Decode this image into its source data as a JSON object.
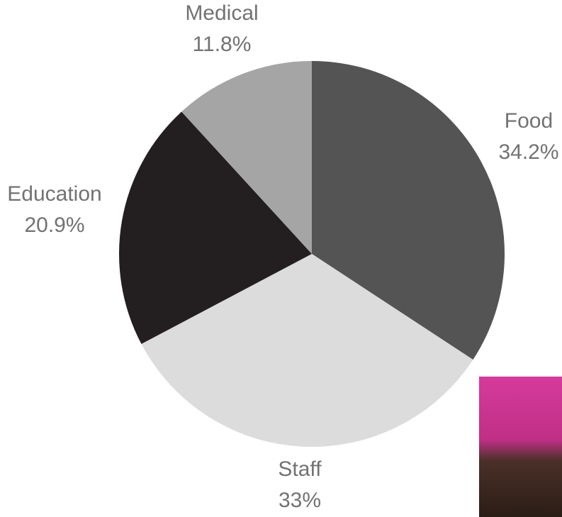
{
  "chart_data": {
    "type": "pie",
    "categories": [
      "Food",
      "Staff",
      "Education",
      "Medical"
    ],
    "values": [
      34.2,
      33,
      20.9,
      11.8
    ],
    "value_labels": [
      "34.2%",
      "33%",
      "20.9%",
      "11.8%"
    ],
    "colors": [
      "#545454",
      "#dcdcdc",
      "#231f20",
      "#a5a5a5"
    ]
  }
}
